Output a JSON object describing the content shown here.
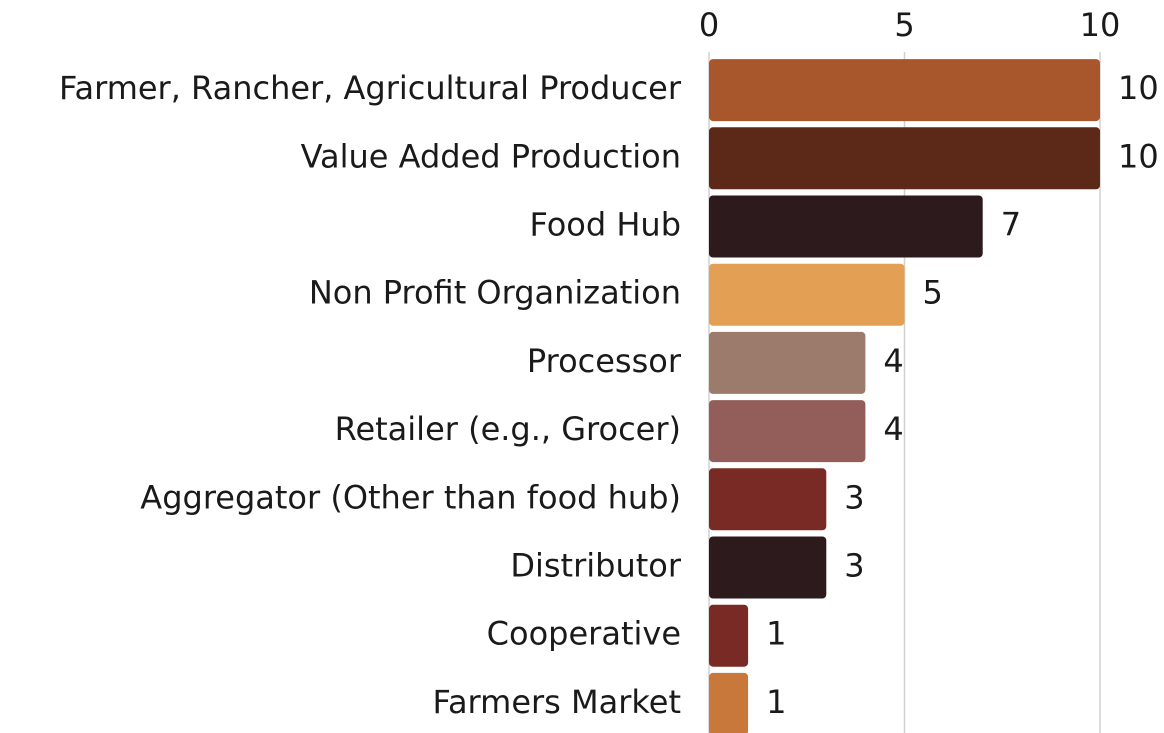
{
  "chart_data": {
    "type": "bar",
    "orientation": "horizontal",
    "categories": [
      "Farmer, Rancher, Agricultural Producer",
      "Value Added Production",
      "Food Hub",
      "Non Profit Organization",
      "Processor",
      "Retailer (e.g., Grocer)",
      "Aggregator (Other than food hub)",
      "Distributor",
      "Cooperative",
      "Farmers Market"
    ],
    "values": [
      10,
      10,
      7,
      5,
      4,
      4,
      3,
      3,
      1,
      1
    ],
    "colors": [
      "#a8572c",
      "#5c2818",
      "#2c1a1c",
      "#e3a055",
      "#9c7b6c",
      "#935e5a",
      "#7a2a24",
      "#2c1a1c",
      "#7a2a24",
      "#c8783a"
    ],
    "xlim": [
      0,
      10
    ],
    "xticks": [
      0,
      5,
      10
    ],
    "grid": true
  }
}
